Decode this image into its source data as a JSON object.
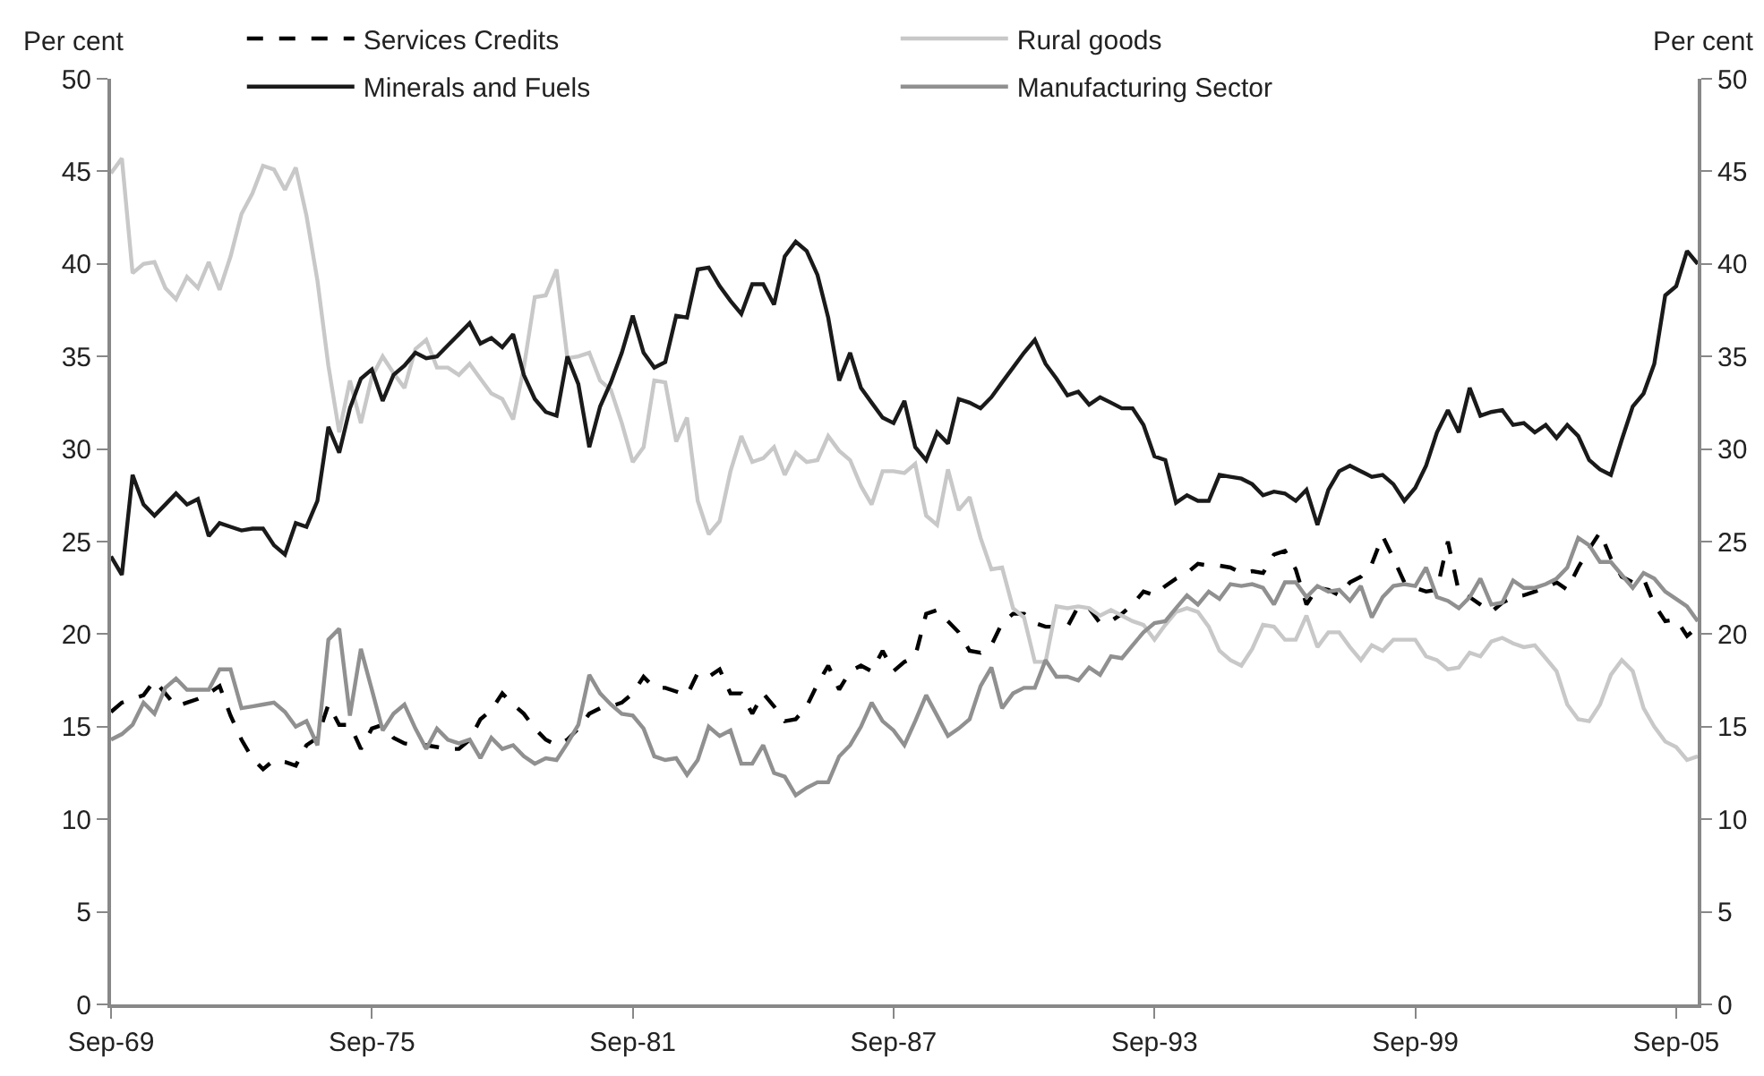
{
  "chart_data": {
    "type": "line",
    "ylabel": "Per cent",
    "y2label": "Per cent",
    "x": [
      "1969-09",
      "1969-12",
      "1970-03",
      "1970-06",
      "1970-09",
      "1970-12",
      "1971-03",
      "1971-06",
      "1971-09",
      "1971-12",
      "1972-03",
      "1972-06",
      "1972-09",
      "1972-12",
      "1973-03",
      "1973-06",
      "1973-09",
      "1973-12",
      "1974-03",
      "1974-06",
      "1974-09",
      "1974-12",
      "1975-03",
      "1975-06",
      "1975-09",
      "1975-12",
      "1976-03",
      "1976-06",
      "1976-09",
      "1976-12",
      "1977-03",
      "1977-06",
      "1977-09",
      "1977-12",
      "1978-03",
      "1978-06",
      "1978-09",
      "1978-12",
      "1979-03",
      "1979-06",
      "1979-09",
      "1979-12",
      "1980-03",
      "1980-06",
      "1980-09",
      "1980-12",
      "1981-03",
      "1981-06",
      "1981-09",
      "1981-12",
      "1982-03",
      "1982-06",
      "1982-09",
      "1982-12",
      "1983-03",
      "1983-06",
      "1983-09",
      "1983-12",
      "1984-03",
      "1984-06",
      "1984-09",
      "1984-12",
      "1985-03",
      "1985-06",
      "1985-09",
      "1985-12",
      "1986-03",
      "1986-06",
      "1986-09",
      "1986-12",
      "1987-03",
      "1987-06",
      "1987-09",
      "1987-12",
      "1988-03",
      "1988-06",
      "1988-09",
      "1988-12",
      "1989-03",
      "1989-06",
      "1989-09",
      "1989-12",
      "1990-03",
      "1990-06",
      "1990-09",
      "1990-12",
      "1991-03",
      "1991-06",
      "1991-09",
      "1991-12",
      "1992-03",
      "1992-06",
      "1992-09",
      "1992-12",
      "1993-03",
      "1993-06",
      "1993-09",
      "1993-12",
      "1994-03",
      "1994-06",
      "1994-09",
      "1994-12",
      "1995-03",
      "1995-06",
      "1995-09",
      "1995-12",
      "1996-03",
      "1996-06",
      "1996-09",
      "1996-12",
      "1997-03",
      "1997-06",
      "1997-09",
      "1997-12",
      "1998-03",
      "1998-06",
      "1998-09",
      "1998-12",
      "1999-03",
      "1999-06",
      "1999-09",
      "1999-12",
      "2000-03",
      "2000-06",
      "2000-09",
      "2000-12",
      "2001-03",
      "2001-06",
      "2001-09",
      "2001-12",
      "2002-03",
      "2002-06",
      "2002-09",
      "2002-12",
      "2003-03",
      "2003-06",
      "2003-09",
      "2003-12",
      "2004-03",
      "2004-06",
      "2004-09",
      "2004-12",
      "2005-03",
      "2005-06",
      "2005-09",
      "2005-12",
      "2006-03"
    ],
    "series": [
      {
        "name": "Services Credits",
        "color": "#000000",
        "line_style": "dashed",
        "values": [
          15.8,
          16.3,
          16.5,
          16.7,
          17.5,
          16.8,
          16.1,
          16.3,
          16.5,
          16.8,
          17.2,
          15.6,
          14.3,
          13.3,
          12.7,
          13.2,
          13.1,
          12.9,
          14.0,
          14.4,
          16.2,
          15.1,
          15.1,
          13.8,
          14.9,
          15.1,
          14.4,
          14.1,
          14.0,
          14.0,
          13.9,
          13.8,
          13.8,
          14.3,
          15.4,
          15.9,
          16.8,
          16.2,
          15.7,
          14.9,
          14.3,
          14.0,
          14.3,
          14.9,
          15.7,
          16.0,
          16.1,
          16.3,
          16.8,
          17.7,
          17.1,
          17.1,
          16.9,
          16.7,
          17.9,
          17.7,
          18.1,
          16.8,
          16.8,
          15.7,
          16.8,
          16.1,
          15.3,
          15.4,
          16.1,
          17.3,
          18.3,
          17.0,
          18.0,
          18.3,
          18.0,
          19.1,
          18.0,
          18.5,
          18.8,
          21.1,
          21.3,
          20.7,
          20.1,
          19.1,
          19.0,
          19.4,
          20.6,
          21.1,
          21.1,
          20.6,
          20.4,
          20.4,
          20.4,
          21.5,
          21.4,
          20.6,
          20.7,
          21.1,
          21.6,
          22.3,
          22.1,
          22.6,
          23.0,
          23.3,
          23.8,
          23.7,
          23.7,
          23.6,
          23.3,
          23.4,
          23.3,
          24.3,
          24.5,
          23.5,
          21.6,
          22.5,
          22.4,
          22.1,
          22.8,
          23.1,
          23.8,
          25.3,
          24.1,
          22.8,
          22.5,
          22.3,
          22.4,
          25.0,
          22.3,
          22.0,
          21.6,
          21.2,
          21.7,
          22.0,
          22.1,
          22.3,
          22.5,
          22.8,
          22.4,
          23.6,
          24.6,
          25.5,
          24.1,
          23.1,
          22.8,
          23.0,
          21.6,
          20.7,
          20.8,
          19.9,
          20.4
        ]
      },
      {
        "name": "Rural goods",
        "color": "#c8c8c8",
        "line_style": "solid",
        "values": [
          44.9,
          45.7,
          39.5,
          40.0,
          40.1,
          38.7,
          38.1,
          39.3,
          38.7,
          40.1,
          38.6,
          40.4,
          42.7,
          43.8,
          45.3,
          45.1,
          44.0,
          45.2,
          42.6,
          39.1,
          34.5,
          30.9,
          33.7,
          31.4,
          33.9,
          35.0,
          34.1,
          33.3,
          35.4,
          35.9,
          34.4,
          34.4,
          34.0,
          34.6,
          33.8,
          33.0,
          32.7,
          31.6,
          34.4,
          38.2,
          38.3,
          39.7,
          34.9,
          35.0,
          35.2,
          33.7,
          33.2,
          31.4,
          29.3,
          30.1,
          33.7,
          33.6,
          30.4,
          31.7,
          27.2,
          25.4,
          26.1,
          28.8,
          30.7,
          29.3,
          29.5,
          30.1,
          28.6,
          29.8,
          29.3,
          29.4,
          30.7,
          29.9,
          29.4,
          28.0,
          27.0,
          28.8,
          28.8,
          28.7,
          29.2,
          26.4,
          25.9,
          28.9,
          26.7,
          27.4,
          25.2,
          23.5,
          23.6,
          21.4,
          20.9,
          18.5,
          18.5,
          21.5,
          21.4,
          21.5,
          21.4,
          21.0,
          21.3,
          21.0,
          20.7,
          20.5,
          19.7,
          20.5,
          21.2,
          21.4,
          21.2,
          20.4,
          19.1,
          18.6,
          18.3,
          19.2,
          20.5,
          20.4,
          19.7,
          19.7,
          21.0,
          19.3,
          20.1,
          20.1,
          19.3,
          18.6,
          19.4,
          19.1,
          19.7,
          19.7,
          19.7,
          18.8,
          18.6,
          18.1,
          18.2,
          19.0,
          18.8,
          19.6,
          19.8,
          19.5,
          19.3,
          19.4,
          18.7,
          18.0,
          16.2,
          15.4,
          15.3,
          16.2,
          17.8,
          18.6,
          18.0,
          16.0,
          15.0,
          14.2,
          13.9,
          13.2,
          13.4
        ]
      },
      {
        "name": "Minerals and Fuels",
        "color": "#1a1a1a",
        "line_style": "solid",
        "values": [
          24.2,
          23.2,
          28.6,
          27.0,
          26.4,
          27.0,
          27.6,
          27.0,
          27.3,
          25.3,
          26.0,
          25.8,
          25.6,
          25.7,
          25.7,
          24.8,
          24.3,
          26.0,
          25.8,
          27.2,
          31.2,
          29.8,
          32.2,
          33.8,
          34.3,
          32.6,
          34.0,
          34.5,
          35.2,
          34.9,
          35.0,
          35.6,
          36.2,
          36.8,
          35.7,
          36.0,
          35.5,
          36.2,
          34.0,
          32.7,
          32.0,
          31.8,
          35.0,
          33.5,
          30.1,
          32.3,
          33.6,
          35.2,
          37.2,
          35.2,
          34.4,
          34.7,
          37.2,
          37.1,
          39.7,
          39.8,
          38.8,
          38.0,
          37.3,
          38.9,
          38.9,
          37.8,
          40.4,
          41.2,
          40.7,
          39.4,
          37.1,
          33.7,
          35.2,
          33.3,
          32.5,
          31.7,
          31.4,
          32.6,
          30.1,
          29.4,
          30.9,
          30.3,
          32.7,
          32.5,
          32.2,
          32.8,
          33.6,
          34.4,
          35.2,
          35.9,
          34.6,
          33.8,
          32.9,
          33.1,
          32.4,
          32.8,
          32.5,
          32.2,
          32.2,
          31.3,
          29.6,
          29.4,
          27.1,
          27.5,
          27.2,
          27.2,
          28.6,
          28.5,
          28.4,
          28.1,
          27.5,
          27.7,
          27.6,
          27.2,
          27.8,
          25.9,
          27.8,
          28.8,
          29.1,
          28.8,
          28.5,
          28.6,
          28.1,
          27.2,
          27.9,
          29.1,
          30.9,
          32.1,
          30.9,
          33.3,
          31.8,
          32.0,
          32.1,
          31.3,
          31.4,
          30.9,
          31.3,
          30.6,
          31.3,
          30.7,
          29.4,
          28.9,
          28.6,
          30.5,
          32.3,
          33.0,
          34.6,
          38.3,
          38.8,
          40.7,
          40.0
        ]
      },
      {
        "name": "Manufacturing Sector",
        "color": "#909090",
        "line_style": "solid",
        "values": [
          14.3,
          14.6,
          15.1,
          16.3,
          15.7,
          17.1,
          17.6,
          17.0,
          17.0,
          17.0,
          18.1,
          18.1,
          16.0,
          16.1,
          16.2,
          16.3,
          15.8,
          15.0,
          15.3,
          14.0,
          19.7,
          20.3,
          15.6,
          19.2,
          17.0,
          14.8,
          15.7,
          16.2,
          14.9,
          13.8,
          14.9,
          14.3,
          14.1,
          14.3,
          13.3,
          14.4,
          13.8,
          14.0,
          13.4,
          13.0,
          13.3,
          13.2,
          14.1,
          15.1,
          17.8,
          16.8,
          16.2,
          15.7,
          15.6,
          14.9,
          13.4,
          13.2,
          13.3,
          12.4,
          13.2,
          15.0,
          14.5,
          14.8,
          13.0,
          13.0,
          14.0,
          12.5,
          12.3,
          11.3,
          11.7,
          12.0,
          12.0,
          13.4,
          14.0,
          15.0,
          16.3,
          15.3,
          14.8,
          14.0,
          15.3,
          16.7,
          15.6,
          14.5,
          14.9,
          15.4,
          17.2,
          18.2,
          16.0,
          16.8,
          17.1,
          17.1,
          18.6,
          17.7,
          17.7,
          17.5,
          18.2,
          17.8,
          18.8,
          18.7,
          19.4,
          20.1,
          20.6,
          20.7,
          21.4,
          22.1,
          21.6,
          22.3,
          21.9,
          22.7,
          22.6,
          22.7,
          22.5,
          21.6,
          22.8,
          22.8,
          22.0,
          22.6,
          22.3,
          22.4,
          21.8,
          22.6,
          20.9,
          22.0,
          22.6,
          22.7,
          22.6,
          23.6,
          22.0,
          21.8,
          21.4,
          22.0,
          23.0,
          21.6,
          21.7,
          22.9,
          22.5,
          22.5,
          22.7,
          23.0,
          23.6,
          25.2,
          24.8,
          23.9,
          23.9,
          23.2,
          22.5,
          23.3,
          23.0,
          22.3,
          21.9,
          21.5,
          20.7
        ]
      }
    ],
    "xlim": [
      "1969-09",
      "2006-03"
    ],
    "xticks": [
      {
        "value": "1969-09",
        "label": "Sep-69"
      },
      {
        "value": "1975-09",
        "label": "Sep-75"
      },
      {
        "value": "1981-09",
        "label": "Sep-81"
      },
      {
        "value": "1987-09",
        "label": "Sep-87"
      },
      {
        "value": "1993-09",
        "label": "Sep-93"
      },
      {
        "value": "1999-09",
        "label": "Sep-99"
      },
      {
        "value": "2005-09",
        "label": "Sep-05"
      }
    ],
    "ylim": [
      0,
      50
    ],
    "yticks": [
      0,
      5,
      10,
      15,
      20,
      25,
      30,
      35,
      40,
      45,
      50
    ],
    "y2lim": [
      0,
      50
    ],
    "y2ticks": [
      0,
      5,
      10,
      15,
      20,
      25,
      30,
      35,
      40,
      45,
      50
    ],
    "legend": "top"
  }
}
